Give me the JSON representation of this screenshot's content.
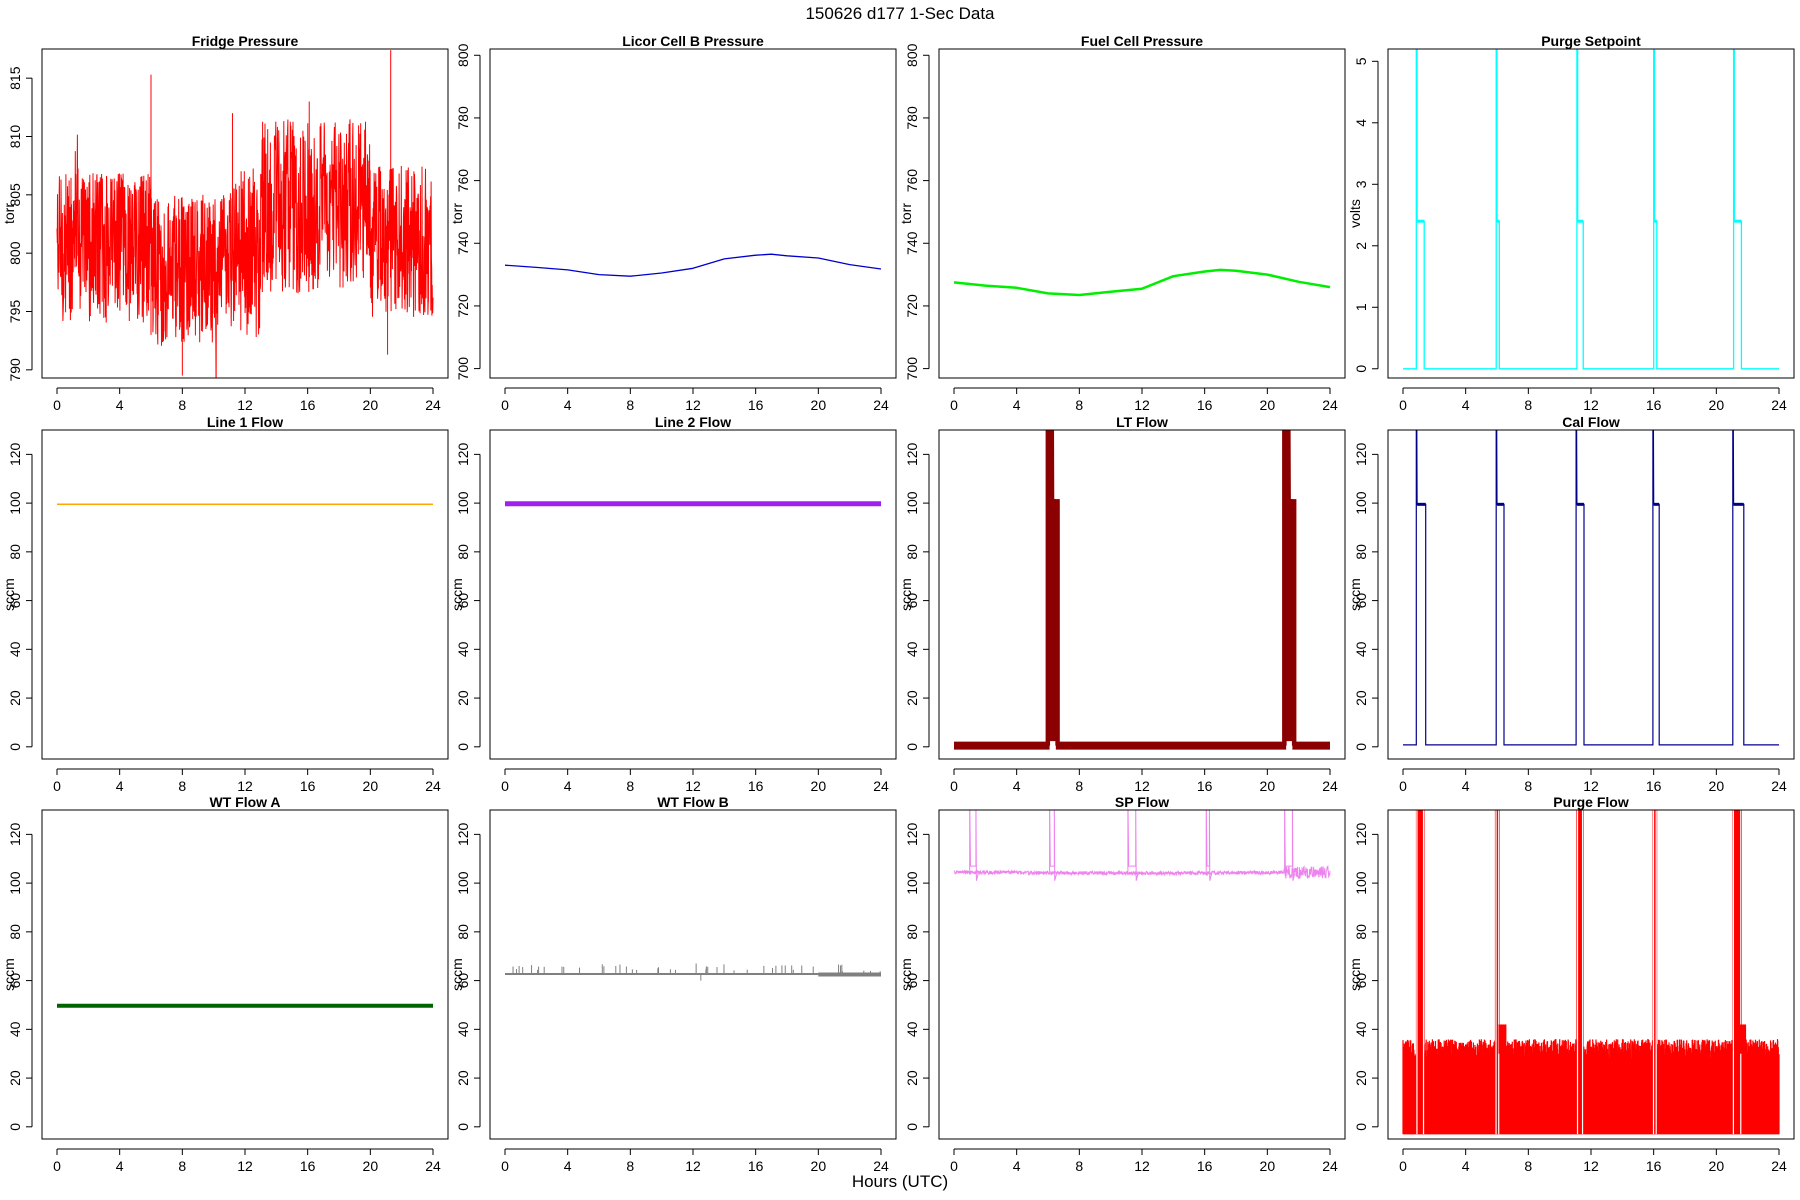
{
  "figure": {
    "title": "150626   d177   1-Sec Data",
    "xlabel": "Hours (UTC)"
  },
  "chart_data": [
    {
      "type": "line",
      "title": "Fridge Pressure",
      "ylabel": "torr",
      "color": "#ff0000",
      "ylim": [
        789.3,
        817.5
      ],
      "yticks": [
        790,
        795,
        800,
        805,
        810,
        815
      ],
      "xlim": [
        0,
        24
      ],
      "xticks": [
        0,
        4,
        8,
        12,
        16,
        20,
        24
      ],
      "series": [
        {
          "name": "Fridge Pressure",
          "kind": "noise",
          "pattern": "fridge"
        }
      ]
    },
    {
      "type": "line",
      "title": "Licor Cell B Pressure",
      "ylabel": "torr",
      "color": "#0000cd",
      "ylim": [
        697,
        802
      ],
      "yticks": [
        700,
        720,
        740,
        760,
        780,
        800
      ],
      "xlim": [
        0,
        24
      ],
      "xticks": [
        0,
        4,
        8,
        12,
        16,
        20,
        24
      ],
      "series": [
        {
          "name": "Licor Cell B Pressure",
          "x": [
            0,
            2,
            4,
            6,
            8,
            10,
            12,
            14,
            16,
            17,
            18,
            20,
            22,
            24
          ],
          "y": [
            733,
            732.3,
            731.5,
            730,
            729.5,
            730.5,
            732,
            735,
            736.2,
            736.5,
            736,
            735.3,
            733.2,
            731.8
          ],
          "width": 1.3
        }
      ]
    },
    {
      "type": "line",
      "title": "Fuel Cell Pressure",
      "ylabel": "torr",
      "color": "#00ee00",
      "ylim": [
        697,
        802
      ],
      "yticks": [
        700,
        720,
        740,
        760,
        780,
        800
      ],
      "xlim": [
        0,
        24
      ],
      "xticks": [
        0,
        4,
        8,
        12,
        16,
        20,
        24
      ],
      "series": [
        {
          "name": "Fuel Cell Pressure",
          "x": [
            0,
            2,
            4,
            6,
            8,
            10,
            12,
            14,
            16,
            17,
            18,
            20,
            22,
            24
          ],
          "y": [
            727.5,
            726.5,
            725.8,
            724,
            723.5,
            724.5,
            725.5,
            729.5,
            731,
            731.5,
            731.2,
            730,
            727.7,
            726
          ],
          "width": 2.5
        }
      ]
    },
    {
      "type": "line",
      "title": "Purge Setpoint",
      "ylabel": "volts",
      "color": "#00ffff",
      "ylim": [
        -0.15,
        5.2
      ],
      "yticks": [
        0,
        1,
        2,
        3,
        4,
        5
      ],
      "xlim": [
        0,
        24
      ],
      "xticks": [
        0,
        4,
        8,
        12,
        16,
        20,
        24
      ],
      "series": [
        {
          "name": "Purge Setpoint",
          "kind": "pulses",
          "base": 0,
          "top": 2.4,
          "pulses": [
            [
              0.85,
              1.35
            ],
            [
              5.95,
              6.15
            ],
            [
              11.1,
              11.5
            ],
            [
              16,
              16.2
            ],
            [
              21.1,
              21.6
            ]
          ],
          "width": 1.3
        }
      ]
    },
    {
      "type": "line",
      "title": "Line 1 Flow",
      "ylabel": "sccm",
      "color": "#ffa500",
      "ylim": [
        -5,
        130
      ],
      "yticks": [
        0,
        20,
        40,
        60,
        80,
        100,
        120
      ],
      "xlim": [
        0,
        24
      ],
      "xticks": [
        0,
        4,
        8,
        12,
        16,
        20,
        24
      ],
      "series": [
        {
          "name": "Line 1 Flow",
          "x": [
            0,
            24
          ],
          "y": [
            99.5,
            99.5
          ],
          "width": 1.5
        }
      ]
    },
    {
      "type": "line",
      "title": "Line 2 Flow",
      "ylabel": "sccm",
      "color": "#a020f0",
      "ylim": [
        -5,
        130
      ],
      "yticks": [
        0,
        20,
        40,
        60,
        80,
        100,
        120
      ],
      "xlim": [
        0,
        24
      ],
      "xticks": [
        0,
        4,
        8,
        12,
        16,
        20,
        24
      ],
      "series": [
        {
          "name": "Line 2 Flow",
          "x": [
            0,
            24
          ],
          "y": [
            99.7,
            99.7
          ],
          "width": 5
        }
      ]
    },
    {
      "type": "line",
      "title": "LT Flow",
      "ylabel": "sccm",
      "color": "#8b0000",
      "ylim": [
        -5,
        130
      ],
      "yticks": [
        0,
        20,
        40,
        60,
        80,
        100,
        120
      ],
      "xlim": [
        0,
        24
      ],
      "xticks": [
        0,
        4,
        8,
        12,
        16,
        20,
        24
      ],
      "series": [
        {
          "name": "LT Flow",
          "kind": "pulses",
          "base": 0.5,
          "top": 100,
          "pulses": [
            [
              6.1,
              6.5
            ],
            [
              21.2,
              21.6
            ]
          ],
          "width": 8
        }
      ]
    },
    {
      "type": "line",
      "title": "Cal Flow",
      "ylabel": "sccm",
      "color": "#00008b",
      "ylim": [
        -5,
        130
      ],
      "yticks": [
        0,
        20,
        40,
        60,
        80,
        100,
        120
      ],
      "xlim": [
        0,
        24
      ],
      "xticks": [
        0,
        4,
        8,
        12,
        16,
        20,
        24
      ],
      "series": [
        {
          "name": "Cal Flow",
          "kind": "pulses",
          "base": 0.8,
          "top": 99.5,
          "pulses": [
            [
              0.85,
              1.45
            ],
            [
              5.95,
              6.45
            ],
            [
              11.05,
              11.55
            ],
            [
              15.95,
              16.35
            ],
            [
              21.05,
              21.75
            ]
          ],
          "width": 1.2
        }
      ]
    },
    {
      "type": "line",
      "title": "WT Flow A",
      "ylabel": "sccm",
      "color": "#006400",
      "ylim": [
        -5,
        130
      ],
      "yticks": [
        0,
        20,
        40,
        60,
        80,
        100,
        120
      ],
      "xlim": [
        0,
        24
      ],
      "xticks": [
        0,
        4,
        8,
        12,
        16,
        20,
        24
      ],
      "series": [
        {
          "name": "WT Flow A",
          "x": [
            0,
            24
          ],
          "y": [
            49.7,
            49.7
          ],
          "width": 4
        }
      ]
    },
    {
      "type": "line",
      "title": "WT Flow B",
      "ylabel": "sccm",
      "color": "#808080",
      "ylim": [
        -5,
        130
      ],
      "yticks": [
        0,
        20,
        40,
        60,
        80,
        100,
        120
      ],
      "xlim": [
        0,
        24
      ],
      "xticks": [
        0,
        4,
        8,
        12,
        16,
        20,
        24
      ],
      "series": [
        {
          "name": "WT Flow B",
          "kind": "noise",
          "pattern": "wtb"
        }
      ]
    },
    {
      "type": "line",
      "title": "SP Flow",
      "ylabel": "sccm",
      "color": "#ee82ee",
      "ylim": [
        -5,
        130
      ],
      "yticks": [
        0,
        20,
        40,
        60,
        80,
        100,
        120
      ],
      "xlim": [
        0,
        24
      ],
      "xticks": [
        0,
        4,
        8,
        12,
        16,
        20,
        24
      ],
      "series": [
        {
          "name": "SP Flow",
          "kind": "noise",
          "pattern": "sp"
        }
      ]
    },
    {
      "type": "line",
      "title": "Purge Flow",
      "ylabel": "sccm",
      "color": "#ff0000",
      "ylim": [
        -5,
        130
      ],
      "yticks": [
        0,
        20,
        40,
        60,
        80,
        100,
        120
      ],
      "xlim": [
        0,
        24
      ],
      "xticks": [
        0,
        4,
        8,
        12,
        16,
        20,
        24
      ],
      "series": [
        {
          "name": "Purge Flow",
          "kind": "noise",
          "pattern": "purge"
        }
      ]
    }
  ]
}
